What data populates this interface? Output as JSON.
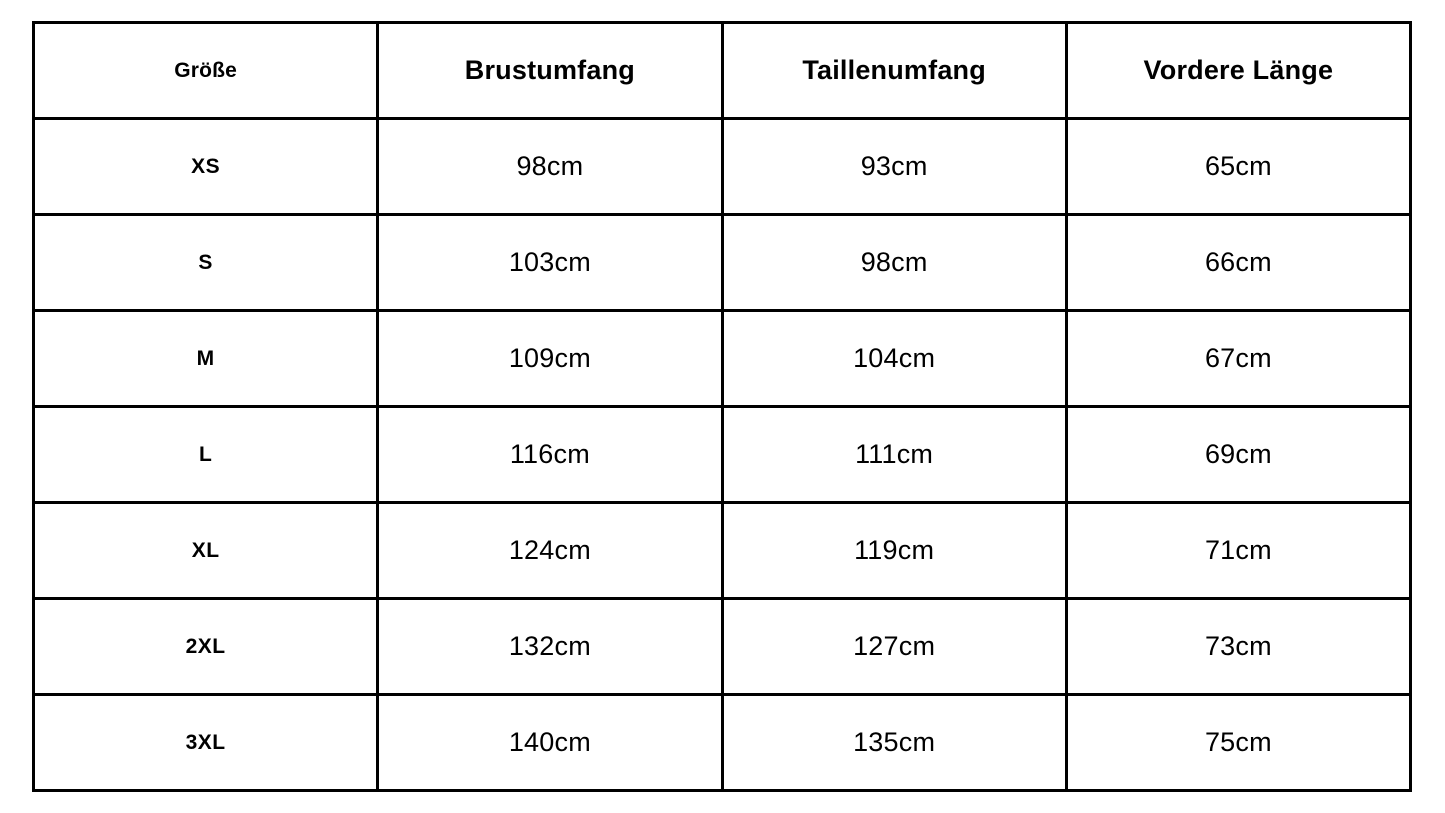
{
  "colors": {
    "background": "#ffffff",
    "border": "#000000",
    "text": "#000000"
  },
  "chart_data": {
    "type": "table",
    "columns": [
      "Größe",
      "Brustumfang",
      "Taillenumfang",
      "Vordere Länge"
    ],
    "rows": [
      [
        "XS",
        "98cm",
        "93cm",
        "65cm"
      ],
      [
        "S",
        "103cm",
        "98cm",
        "66cm"
      ],
      [
        "M",
        "109cm",
        "104cm",
        "67cm"
      ],
      [
        "L",
        "116cm",
        "111cm",
        "69cm"
      ],
      [
        "XL",
        "124cm",
        "119cm",
        "71cm"
      ],
      [
        "2XL",
        "132cm",
        "127cm",
        "73cm"
      ],
      [
        "3XL",
        "140cm",
        "135cm",
        "75cm"
      ]
    ]
  }
}
